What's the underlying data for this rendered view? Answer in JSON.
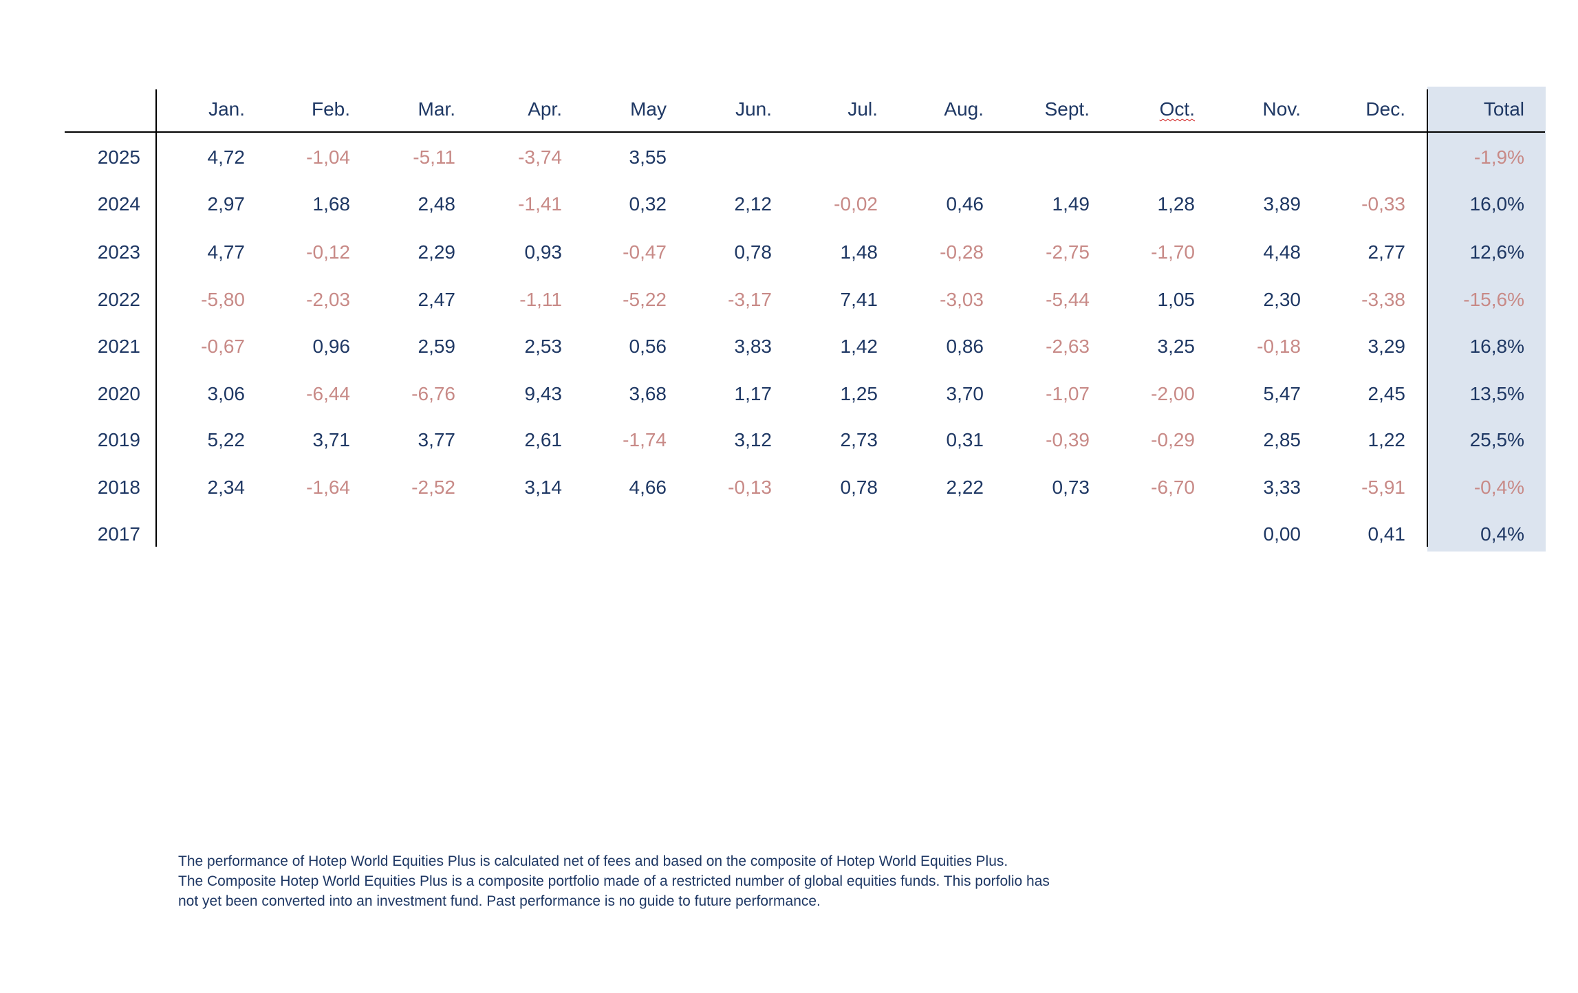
{
  "table": {
    "corner": "",
    "months": [
      "Jan.",
      "Feb.",
      "Mar.",
      "Apr.",
      "May",
      "Jun.",
      "Jul.",
      "Aug.",
      "Sept.",
      "Oct.",
      "Nov.",
      "Dec."
    ],
    "total_header": "Total",
    "rows": [
      {
        "year": "2025",
        "values": [
          "4,72",
          "-1,04",
          "-5,11",
          "-3,74",
          "3,55",
          "",
          "",
          "",
          "",
          "",
          "",
          ""
        ],
        "total": "-1,9%"
      },
      {
        "year": "2024",
        "values": [
          "2,97",
          "1,68",
          "2,48",
          "-1,41",
          "0,32",
          "2,12",
          "-0,02",
          "0,46",
          "1,49",
          "1,28",
          "3,89",
          "-0,33"
        ],
        "total": "16,0%"
      },
      {
        "year": "2023",
        "values": [
          "4,77",
          "-0,12",
          "2,29",
          "0,93",
          "-0,47",
          "0,78",
          "1,48",
          "-0,28",
          "-2,75",
          "-1,70",
          "4,48",
          "2,77"
        ],
        "total": "12,6%"
      },
      {
        "year": "2022",
        "values": [
          "-5,80",
          "-2,03",
          "2,47",
          "-1,11",
          "-5,22",
          "-3,17",
          "7,41",
          "-3,03",
          "-5,44",
          "1,05",
          "2,30",
          "-3,38"
        ],
        "total": "-15,6%"
      },
      {
        "year": "2021",
        "values": [
          "-0,67",
          "0,96",
          "2,59",
          "2,53",
          "0,56",
          "3,83",
          "1,42",
          "0,86",
          "-2,63",
          "3,25",
          "-0,18",
          "3,29"
        ],
        "total": "16,8%"
      },
      {
        "year": "2020",
        "values": [
          "3,06",
          "-6,44",
          "-6,76",
          "9,43",
          "3,68",
          "1,17",
          "1,25",
          "3,70",
          "-1,07",
          "-2,00",
          "5,47",
          "2,45"
        ],
        "total": "13,5%"
      },
      {
        "year": "2019",
        "values": [
          "5,22",
          "3,71",
          "3,77",
          "2,61",
          "-1,74",
          "3,12",
          "2,73",
          "0,31",
          "-0,39",
          "-0,29",
          "2,85",
          "1,22"
        ],
        "total": "25,5%"
      },
      {
        "year": "2018",
        "values": [
          "2,34",
          "-1,64",
          "-2,52",
          "3,14",
          "4,66",
          "-0,13",
          "0,78",
          "2,22",
          "0,73",
          "-6,70",
          "3,33",
          "-5,91"
        ],
        "total": "-0,4%"
      },
      {
        "year": "2017",
        "values": [
          "",
          "",
          "",
          "",
          "",
          "",
          "",
          "",
          "",
          "",
          "0,00",
          "0,41"
        ],
        "total": "0,4%"
      }
    ]
  },
  "footnote": {
    "lines": [
      "The performance of Hotep World Equities Plus is calculated net of fees and based on the composite of Hotep World Equities Plus.",
      "The Composite Hotep World Equities Plus is a composite portfolio made of a restricted number of global equities funds. This porfolio has",
      "not yet been converted into an investment fund. Past performance is no guide to future performance."
    ]
  },
  "colors": {
    "positive": "#1f3864",
    "negative": "#c88a87",
    "total_background": "#dce4ef"
  }
}
